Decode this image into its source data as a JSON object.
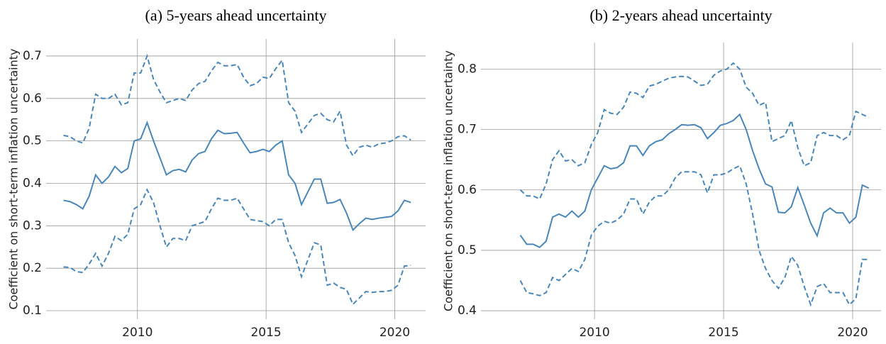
{
  "chart_data": [
    {
      "type": "line",
      "title": "(a) 5-years ahead uncertainty",
      "y_label": "Coefficient on short-term inflation uncertainty",
      "x": [
        2007.125,
        2007.375,
        2007.625,
        2007.875,
        2008.125,
        2008.375,
        2008.625,
        2008.875,
        2009.125,
        2009.375,
        2009.625,
        2009.875,
        2010.125,
        2010.375,
        2010.625,
        2010.875,
        2011.125,
        2011.375,
        2011.625,
        2011.875,
        2012.125,
        2012.375,
        2012.625,
        2012.875,
        2013.125,
        2013.375,
        2013.625,
        2013.875,
        2014.125,
        2014.375,
        2014.625,
        2014.875,
        2015.125,
        2015.375,
        2015.625,
        2015.875,
        2016.125,
        2016.375,
        2016.625,
        2016.875,
        2017.125,
        2017.375,
        2017.625,
        2017.875,
        2018.125,
        2018.375,
        2018.625,
        2018.875,
        2019.125,
        2019.375,
        2019.625,
        2019.875,
        2020.125,
        2020.375,
        2020.625
      ],
      "series": [
        {
          "color": "#4a86b8",
          "style": "dashed",
          "values": [
            0.513,
            0.51,
            0.5,
            0.495,
            0.53,
            0.61,
            0.6,
            0.6,
            0.61,
            0.585,
            0.59,
            0.66,
            0.66,
            0.7,
            0.645,
            0.615,
            0.59,
            0.595,
            0.6,
            0.595,
            0.62,
            0.635,
            0.64,
            0.665,
            0.685,
            0.677,
            0.677,
            0.68,
            0.65,
            0.63,
            0.635,
            0.65,
            0.647,
            0.67,
            0.69,
            0.59,
            0.57,
            0.52,
            0.54,
            0.56,
            0.565,
            0.55,
            0.545,
            0.57,
            0.49,
            0.465,
            0.485,
            0.49,
            0.485,
            0.493,
            0.495,
            0.5,
            0.51,
            0.512,
            0.502
          ]
        },
        {
          "color": "#4a86b8",
          "style": "solid",
          "values": [
            0.36,
            0.357,
            0.35,
            0.34,
            0.37,
            0.42,
            0.4,
            0.415,
            0.44,
            0.425,
            0.435,
            0.5,
            0.505,
            0.543,
            0.5,
            0.46,
            0.42,
            0.43,
            0.433,
            0.427,
            0.455,
            0.47,
            0.475,
            0.505,
            0.525,
            0.517,
            0.518,
            0.52,
            0.495,
            0.472,
            0.475,
            0.48,
            0.475,
            0.49,
            0.5,
            0.42,
            0.4,
            0.35,
            0.38,
            0.41,
            0.41,
            0.353,
            0.355,
            0.362,
            0.33,
            0.29,
            0.305,
            0.318,
            0.315,
            0.318,
            0.32,
            0.322,
            0.335,
            0.36,
            0.355
          ]
        },
        {
          "color": "#4a86b8",
          "style": "dashed",
          "values": [
            0.203,
            0.202,
            0.192,
            0.19,
            0.21,
            0.235,
            0.205,
            0.235,
            0.275,
            0.265,
            0.28,
            0.34,
            0.35,
            0.385,
            0.355,
            0.3,
            0.25,
            0.27,
            0.27,
            0.265,
            0.3,
            0.305,
            0.31,
            0.34,
            0.365,
            0.36,
            0.36,
            0.365,
            0.34,
            0.315,
            0.312,
            0.31,
            0.3,
            0.315,
            0.315,
            0.26,
            0.23,
            0.18,
            0.22,
            0.26,
            0.255,
            0.16,
            0.165,
            0.155,
            0.15,
            0.115,
            0.13,
            0.145,
            0.143,
            0.145,
            0.145,
            0.148,
            0.16,
            0.205,
            0.207
          ]
        }
      ],
      "xlim": [
        2006.45,
        2021.2
      ],
      "xticks": [
        2010,
        2015,
        2020
      ],
      "ylim": [
        0.08,
        0.74
      ],
      "yticks": [
        0.1,
        0.2,
        0.3,
        0.4,
        0.5,
        0.6,
        0.7
      ],
      "grid": true
    },
    {
      "type": "line",
      "title": "(b) 2-years ahead uncertainty",
      "y_label": "Coefficient on short-term inflation uncertainty",
      "x": [
        2007.125,
        2007.375,
        2007.625,
        2007.875,
        2008.125,
        2008.375,
        2008.625,
        2008.875,
        2009.125,
        2009.375,
        2009.625,
        2009.875,
        2010.125,
        2010.375,
        2010.625,
        2010.875,
        2011.125,
        2011.375,
        2011.625,
        2011.875,
        2012.125,
        2012.375,
        2012.625,
        2012.875,
        2013.125,
        2013.375,
        2013.625,
        2013.875,
        2014.125,
        2014.375,
        2014.625,
        2014.875,
        2015.125,
        2015.375,
        2015.625,
        2015.875,
        2016.125,
        2016.375,
        2016.625,
        2016.875,
        2017.125,
        2017.375,
        2017.625,
        2017.875,
        2018.125,
        2018.375,
        2018.625,
        2018.875,
        2019.125,
        2019.375,
        2019.625,
        2019.875,
        2020.125,
        2020.375,
        2020.625
      ],
      "series": [
        {
          "color": "#4a86b8",
          "style": "dashed",
          "values": [
            0.6,
            0.59,
            0.59,
            0.585,
            0.61,
            0.65,
            0.665,
            0.648,
            0.65,
            0.64,
            0.645,
            0.675,
            0.695,
            0.733,
            0.727,
            0.725,
            0.737,
            0.762,
            0.76,
            0.753,
            0.772,
            0.775,
            0.78,
            0.785,
            0.787,
            0.788,
            0.787,
            0.78,
            0.773,
            0.775,
            0.79,
            0.797,
            0.8,
            0.81,
            0.8,
            0.77,
            0.76,
            0.74,
            0.745,
            0.68,
            0.685,
            0.69,
            0.715,
            0.67,
            0.64,
            0.645,
            0.69,
            0.695,
            0.69,
            0.69,
            0.683,
            0.69,
            0.73,
            0.725,
            0.72
          ]
        },
        {
          "color": "#4a86b8",
          "style": "solid",
          "values": [
            0.525,
            0.51,
            0.51,
            0.505,
            0.515,
            0.555,
            0.56,
            0.555,
            0.565,
            0.555,
            0.565,
            0.6,
            0.62,
            0.64,
            0.635,
            0.637,
            0.645,
            0.673,
            0.673,
            0.657,
            0.673,
            0.68,
            0.683,
            0.693,
            0.7,
            0.708,
            0.707,
            0.708,
            0.703,
            0.685,
            0.695,
            0.707,
            0.71,
            0.715,
            0.725,
            0.7,
            0.665,
            0.635,
            0.61,
            0.605,
            0.563,
            0.562,
            0.572,
            0.604,
            0.575,
            0.545,
            0.524,
            0.562,
            0.57,
            0.562,
            0.562,
            0.545,
            0.555,
            0.608,
            0.603
          ]
        },
        {
          "color": "#4a86b8",
          "style": "dashed",
          "values": [
            0.45,
            0.43,
            0.428,
            0.425,
            0.43,
            0.455,
            0.45,
            0.46,
            0.47,
            0.465,
            0.485,
            0.525,
            0.54,
            0.548,
            0.545,
            0.55,
            0.56,
            0.585,
            0.585,
            0.56,
            0.58,
            0.59,
            0.59,
            0.6,
            0.62,
            0.63,
            0.63,
            0.63,
            0.625,
            0.595,
            0.625,
            0.625,
            0.628,
            0.635,
            0.64,
            0.61,
            0.56,
            0.5,
            0.47,
            0.45,
            0.437,
            0.455,
            0.49,
            0.475,
            0.44,
            0.41,
            0.44,
            0.445,
            0.43,
            0.43,
            0.43,
            0.41,
            0.42,
            0.485,
            0.485
          ]
        }
      ],
      "xlim": [
        2005.6,
        2021.1
      ],
      "xticks": [
        2010,
        2015,
        2020
      ],
      "ylim": [
        0.386,
        0.844
      ],
      "yticks": [
        0.4,
        0.5,
        0.6,
        0.7,
        0.8
      ],
      "grid": true
    }
  ]
}
